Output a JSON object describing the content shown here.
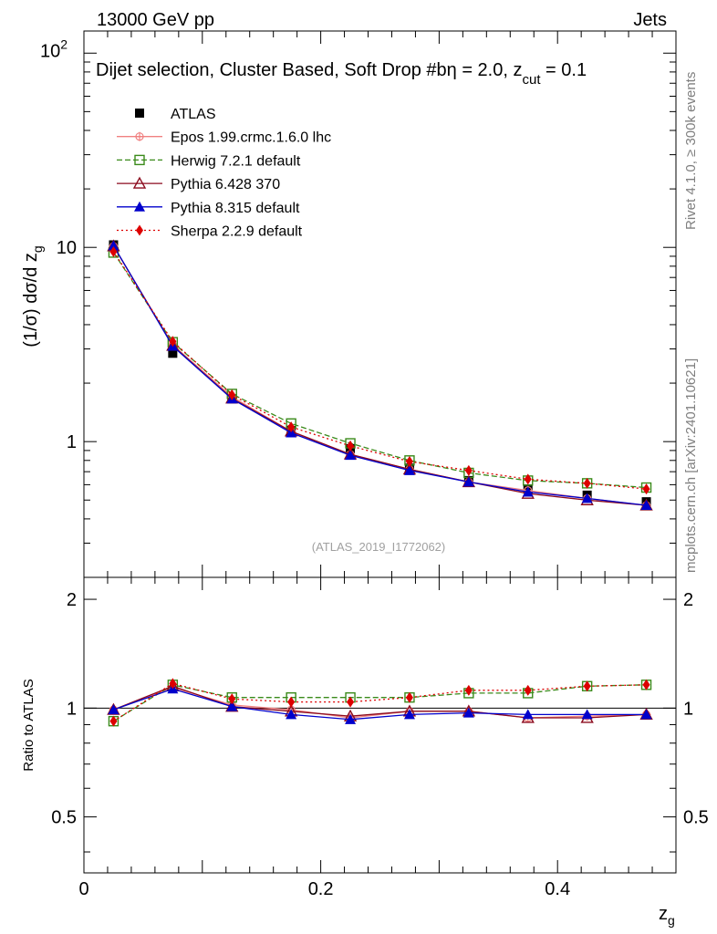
{
  "header": {
    "left_label": "13000 GeV pp",
    "right_label": "Jets",
    "side_label_top": "Rivet 4.1.0, ≥ 300k events",
    "side_label_bottom": "mcplots.cern.ch [arXiv:2401.10621]",
    "analysis_id": "(ATLAS_2019_I1772062)"
  },
  "chart_data": [
    {
      "type": "line",
      "yscale": "log",
      "title": "Dijet selection, Cluster Based, Soft Drop #b",
      "title_tail": "η = 2.0, z",
      "title_sub": "cut",
      "title_end": " = 0.1",
      "ylabel": "(1/σ) dσ/d z",
      "ylabel_sub": "g",
      "xlim": [
        0,
        0.5
      ],
      "ylim": [
        0.2,
        130
      ],
      "ytick_labels": [
        {
          "v": 1,
          "t": "1"
        },
        {
          "v": 10,
          "t": "10"
        },
        {
          "v": 100,
          "t": "10",
          "sup": "2"
        }
      ],
      "x": [
        0.025,
        0.075,
        0.125,
        0.175,
        0.225,
        0.275,
        0.325,
        0.375,
        0.425,
        0.475
      ],
      "series": [
        {
          "name": "ATLAS",
          "color": "#000000",
          "marker": "square-filled",
          "dash": "none",
          "values": [
            10.3,
            2.85,
            1.66,
            1.14,
            0.92,
            0.73,
            0.63,
            0.57,
            0.53,
            0.49
          ]
        },
        {
          "name": "Epos 1.99.crmc.1.6.0 lhc",
          "color": "#f08080",
          "marker": "cross-circle",
          "dash": "solid",
          "values": [
            10.15,
            3.15,
            1.7,
            1.13,
            0.86,
            0.72,
            0.62,
            0.56,
            0.51,
            0.47
          ]
        },
        {
          "name": "Herwig 7.2.1 default",
          "color": "#3a8a1a",
          "marker": "square-open",
          "dash": "dashed",
          "values": [
            9.4,
            3.25,
            1.76,
            1.24,
            0.98,
            0.8,
            0.69,
            0.63,
            0.61,
            0.58
          ]
        },
        {
          "name": "Pythia 6.428 370",
          "color": "#8b0a1e",
          "marker": "triangle-open",
          "dash": "solid",
          "values": [
            10.15,
            3.12,
            1.67,
            1.13,
            0.86,
            0.72,
            0.62,
            0.54,
            0.5,
            0.47
          ]
        },
        {
          "name": "Pythia 8.315 default",
          "color": "#0000cc",
          "marker": "triangle-filled",
          "dash": "solid",
          "values": [
            10.2,
            3.1,
            1.66,
            1.11,
            0.85,
            0.71,
            0.62,
            0.55,
            0.51,
            0.47
          ]
        },
        {
          "name": "Sherpa 2.2.9 default",
          "color": "#dd0000",
          "marker": "diamond-filled",
          "dash": "dotted",
          "values": [
            9.5,
            3.28,
            1.74,
            1.19,
            0.95,
            0.79,
            0.71,
            0.64,
            0.61,
            0.57
          ]
        }
      ]
    },
    {
      "type": "line",
      "role": "ratio",
      "ylabel": "Ratio to ATLAS",
      "xlabel": "z",
      "xlabel_sub": "g",
      "xlim": [
        0,
        0.5
      ],
      "ylim": [
        0.35,
        2.3
      ],
      "x_tick_labels": [
        {
          "v": 0,
          "t": "0"
        },
        {
          "v": 0.2,
          "t": "0.2"
        },
        {
          "v": 0.4,
          "t": "0.4"
        }
      ],
      "y_tick_labels": [
        {
          "v": 0.5,
          "t": "0.5"
        },
        {
          "v": 1,
          "t": "1"
        },
        {
          "v": 2,
          "t": "2"
        }
      ],
      "x": [
        0.025,
        0.075,
        0.125,
        0.175,
        0.225,
        0.275,
        0.325,
        0.375,
        0.425,
        0.475
      ],
      "series": [
        {
          "name": "Epos 1.99.crmc.1.6.0 lhc",
          "color": "#f08080",
          "marker": "cross-circle",
          "dash": "solid",
          "values": [
            0.99,
            1.14,
            1.02,
            0.99,
            0.94,
            0.98,
            0.98,
            0.94,
            0.95,
            0.96
          ]
        },
        {
          "name": "Herwig 7.2.1 default",
          "color": "#3a8a1a",
          "marker": "square-open",
          "dash": "dashed",
          "values": [
            0.92,
            1.16,
            1.07,
            1.07,
            1.07,
            1.07,
            1.1,
            1.1,
            1.15,
            1.16
          ]
        },
        {
          "name": "Pythia 6.428 370",
          "color": "#8b0a1e",
          "marker": "triangle-open",
          "dash": "solid",
          "values": [
            0.99,
            1.15,
            1.01,
            0.98,
            0.95,
            0.98,
            0.98,
            0.94,
            0.94,
            0.96
          ]
        },
        {
          "name": "Pythia 8.315 default",
          "color": "#0000cc",
          "marker": "triangle-filled",
          "dash": "solid",
          "values": [
            0.99,
            1.13,
            1.01,
            0.96,
            0.93,
            0.96,
            0.97,
            0.96,
            0.96,
            0.96
          ]
        },
        {
          "name": "Sherpa 2.2.9 default",
          "color": "#dd0000",
          "marker": "diamond-filled",
          "dash": "dotted",
          "values": [
            0.92,
            1.17,
            1.06,
            1.04,
            1.04,
            1.07,
            1.12,
            1.12,
            1.15,
            1.16
          ]
        }
      ]
    }
  ]
}
